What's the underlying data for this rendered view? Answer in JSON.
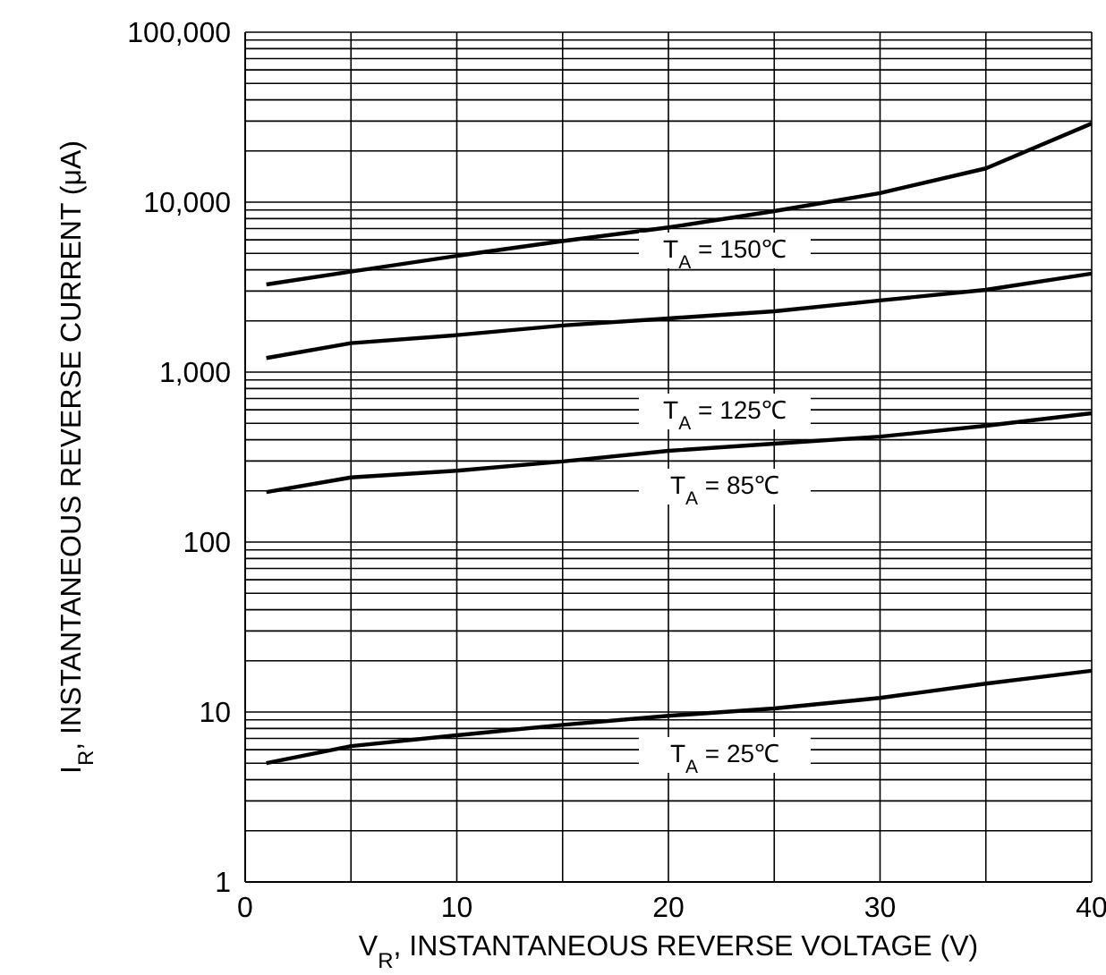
{
  "chart_data": {
    "type": "line",
    "xlabel": "V$_{R}$, INSTANTANEOUS REVERSE VOLTAGE (V)",
    "ylabel": "I$_{R}$, INSTANTANEOUS REVERSE CURRENT (μA)",
    "x": [
      1,
      5,
      10,
      15,
      20,
      25,
      30,
      35,
      40
    ],
    "series": [
      {
        "color": "#000000",
        "values": [
          3280,
          3900,
          4830,
          5900,
          7100,
          8860,
          11300,
          15800,
          29000
        ]
      },
      {
        "color": "#000000",
        "values": [
          1210,
          1480,
          1650,
          1880,
          2070,
          2280,
          2640,
          3050,
          3800
        ]
      },
      {
        "color": "#000000",
        "values": [
          197,
          240,
          263,
          298,
          344,
          379,
          417,
          483,
          573
        ]
      },
      {
        "color": "#000000",
        "values": [
          5.0,
          6.3,
          7.3,
          8.4,
          9.5,
          10.5,
          12.1,
          14.7,
          17.5
        ]
      }
    ],
    "log": "y",
    "ylim": [
      1,
      100000
    ],
    "yticks": [
      1,
      10,
      100,
      {
        "value": 1000,
        "label": "1,000"
      },
      {
        "value": 10000,
        "label": "10,000"
      },
      {
        "value": 100000,
        "label": "100,000"
      }
    ],
    "xlim": [
      0,
      40
    ],
    "xticks": [
      0,
      {
        "value": 5,
        "label": null
      },
      10,
      {
        "value": 15,
        "label": null
      },
      20,
      {
        "value": 25,
        "label": null
      },
      30,
      {
        "value": 35,
        "label": null
      },
      40
    ],
    "grid": true,
    "marker": "none",
    "line_style": "solid",
    "annotations": [
      "T$_{A}$ = 150℃",
      "T$_{A}$ = 125℃",
      "T$_{A}$ = 85℃",
      "T$_{A}$ = 25℃"
    ]
  }
}
